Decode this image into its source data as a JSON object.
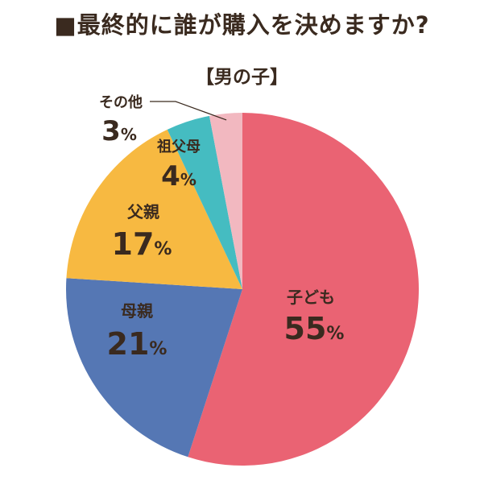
{
  "chart_data": {
    "type": "pie",
    "title": "■最終的に誰が購入を決めますか?",
    "subtitle": "【男の子】",
    "start_angle_deg": 0,
    "direction": "clockwise",
    "slices": [
      {
        "label": "子ども",
        "value": 55,
        "value_label": "55%",
        "color": "#ea6373"
      },
      {
        "label": "母親",
        "value": 21,
        "value_label": "21%",
        "color": "#5577b4"
      },
      {
        "label": "父親",
        "value": 17,
        "value_label": "17%",
        "color": "#f7b941"
      },
      {
        "label": "祖父母",
        "value": 4,
        "value_label": "4%",
        "color": "#45bcc1"
      },
      {
        "label": "その他",
        "value": 3,
        "value_label": "3%",
        "color": "#f2b8c0"
      }
    ]
  }
}
